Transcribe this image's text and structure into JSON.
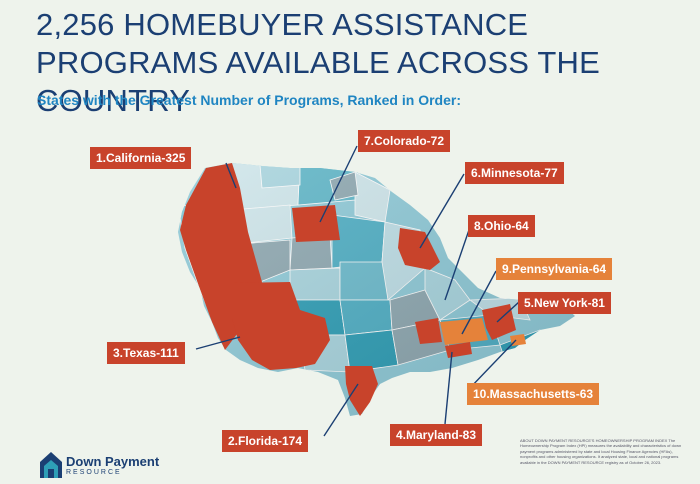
{
  "headline": "2,256 HOMEBUYER ASSISTANCE PROGRAMS AVAILABLE ACROSS THE COUNTRY",
  "subtitle": "States with the Greatest Number of Programs, Ranked in Order:",
  "labels": {
    "california": "1.California-325",
    "florida": "2.Florida-174",
    "texas": "3.Texas-111",
    "maryland": "4.Maryland-83",
    "new_york": "5.New York-81",
    "minnesota": "6.Minnesota-77",
    "colorado": "7.Colorado-72",
    "ohio": "8.Ohio-64",
    "pennsylvania": "9.Pennsylvania-64",
    "massachusetts": "10.Massachusetts-63"
  },
  "logo": {
    "name": "Down Payment",
    "sub": "RESOURCE"
  },
  "about": "ABOUT DOWN PAYMENT RESOURCE'S HOMEOWNERSHIP PROGRAM INDEX The Homeownership Program Index (HPI) measures the availability and characteristics of down payment programs administered by state and local Housing Finance Agencies (HFAs), nonprofits and other housing organizations. It analyzed state, local and national programs available in the DOWN PAYMENT RESOURCE registry as of October 26, 2023.",
  "colors": {
    "highlight_red": "#c8432b",
    "highlight_orange": "#e5823a",
    "navy": "#1b3f73",
    "blue": "#1f85c2"
  }
}
